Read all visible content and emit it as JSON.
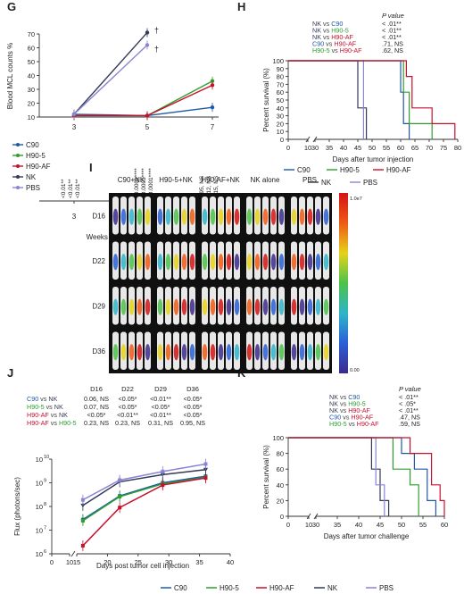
{
  "panels": {
    "G": "G",
    "H": "H",
    "I": "I",
    "J": "J",
    "K": "K"
  },
  "colors": {
    "C90": "#1f5aa6",
    "H90-5": "#2ca02c",
    "H90-AF": "#c8102e",
    "NK": "#333a55",
    "PBS": "#8a84d6"
  },
  "chart_data": [
    {
      "id": "G",
      "type": "line",
      "xlabel": "Weeks after tumor injection",
      "ylabel": "Blood MCL counts %",
      "categories": [
        "3",
        "5",
        "7"
      ],
      "ylim": [
        10,
        70
      ],
      "yticks": [
        10,
        20,
        30,
        40,
        50,
        60,
        70
      ],
      "series": [
        {
          "name": "C90",
          "values": [
            12,
            11,
            17
          ]
        },
        {
          "name": "H90-5",
          "values": [
            11,
            11,
            36
          ]
        },
        {
          "name": "H90-AF",
          "values": [
            11,
            11,
            33
          ]
        },
        {
          "name": "NK",
          "values": [
            12,
            71,
            null
          ]
        },
        {
          "name": "PBS",
          "values": [
            12,
            62,
            null
          ]
        }
      ],
      "death_marks": [
        "†",
        "†"
      ],
      "pvalues": [
        [
          "<0.01**",
          "<0.01**",
          "<0.01**"
        ],
        [
          "<0.0001****",
          "<0.0001****",
          "<0.0001****"
        ],
        [
          "0.95, NS",
          "0.12, NS",
          "0.15, NS"
        ]
      ]
    },
    {
      "id": "H",
      "type": "line",
      "xlabel": "Days after tumor injection",
      "ylabel": "Percent survival (%)",
      "xticks": [
        "0",
        "10",
        "30",
        "35",
        "40",
        "45",
        "50",
        "55",
        "60",
        "65",
        "70",
        "75",
        "80"
      ],
      "yticks": [
        "0",
        "10",
        "20",
        "30",
        "40",
        "50",
        "60",
        "70",
        "80",
        "90",
        "100"
      ],
      "ylim": [
        0,
        100
      ],
      "ptable_header": "P value",
      "ptable": [
        {
          "a": "NK",
          "b": "C90",
          "p": "< .01**"
        },
        {
          "a": "NK",
          "b": "H90-5",
          "p": "< .01**"
        },
        {
          "a": "NK",
          "b": "H90-AF",
          "p": "< .01**"
        },
        {
          "a": "C90",
          "b": "H90-AF",
          "p": ".71, NS"
        },
        {
          "a": "H90-5",
          "b": "H90-AF",
          "p": ".62, NS"
        }
      ],
      "vs": "vs",
      "series": [
        {
          "name": "NK",
          "steps": [
            [
              0,
              100
            ],
            [
              45,
              100
            ],
            [
              45,
              40
            ],
            [
              48,
              40
            ],
            [
              48,
              0
            ]
          ]
        },
        {
          "name": "PBS",
          "steps": [
            [
              0,
              100
            ],
            [
              47,
              100
            ],
            [
              47,
              0
            ]
          ]
        },
        {
          "name": "C90",
          "steps": [
            [
              0,
              100
            ],
            [
              60,
              100
            ],
            [
              60,
              60
            ],
            [
              61,
              60
            ],
            [
              61,
              20
            ],
            [
              63,
              20
            ],
            [
              63,
              0
            ]
          ]
        },
        {
          "name": "H90-5",
          "steps": [
            [
              0,
              100
            ],
            [
              61,
              100
            ],
            [
              61,
              60
            ],
            [
              63,
              60
            ],
            [
              63,
              20
            ],
            [
              71,
              20
            ],
            [
              71,
              0
            ]
          ]
        },
        {
          "name": "H90-AF",
          "steps": [
            [
              0,
              100
            ],
            [
              62,
              100
            ],
            [
              62,
              80
            ],
            [
              64,
              80
            ],
            [
              64,
              40
            ],
            [
              71,
              40
            ],
            [
              71,
              20
            ],
            [
              79,
              20
            ],
            [
              79,
              0
            ]
          ]
        }
      ],
      "legend": [
        "C90",
        "H90-5",
        "H90-AF",
        "NK",
        "PBS"
      ]
    },
    {
      "id": "J",
      "type": "line",
      "xlabel": "Days post tumor cell injection",
      "ylabel": "Flux (photons/sec)",
      "xticks": [
        "0",
        "10",
        "15",
        "20",
        "25",
        "30",
        "35",
        "40"
      ],
      "yticks": [
        "10",
        "10",
        "10",
        "10",
        "10"
      ],
      "ytick_exp": [
        "6",
        "7",
        "8",
        "9",
        "10"
      ],
      "x": [
        16,
        22,
        29,
        36
      ],
      "series": [
        {
          "name": "C90",
          "values": [
            28000000.0,
            280000000.0,
            1000000000.0,
            1900000000.0
          ]
        },
        {
          "name": "H90-5",
          "values": [
            25000000.0,
            260000000.0,
            900000000.0,
            1700000000.0
          ]
        },
        {
          "name": "H90-AF",
          "values": [
            2200000.0,
            90000000.0,
            800000000.0,
            1600000000.0
          ]
        },
        {
          "name": "NK",
          "values": [
            110000000.0,
            1100000000.0,
            2200000000.0,
            3600000000.0
          ]
        },
        {
          "name": "PBS",
          "values": [
            190000000.0,
            1300000000.0,
            3000000000.0,
            6200000000.0
          ]
        }
      ],
      "table_header": [
        "D16",
        "D22",
        "D29",
        "D36"
      ],
      "table": [
        {
          "a": "C90",
          "b": "NK",
          "cells": [
            "0.06, NS",
            "<0.05*",
            "<0.01**",
            "<0.05*"
          ]
        },
        {
          "a": "H90-5",
          "b": "NK",
          "cells": [
            "0.07, NS",
            "<0.05*",
            "<0.05*",
            "<0.05*"
          ]
        },
        {
          "a": "H90-AF",
          "b": "NK",
          "cells": [
            "<0.05*",
            "<0.01**",
            "<0.01**",
            "<0.05*"
          ]
        },
        {
          "a": "H90-AF",
          "b": "H90-5",
          "cells": [
            "0.23, NS",
            "0.23, NS",
            "0.31, NS",
            "0.95, NS"
          ]
        }
      ],
      "legend": [
        "C90",
        "H90-5",
        "H90-AF",
        "NK",
        "PBS"
      ]
    },
    {
      "id": "K",
      "type": "line",
      "xlabel": "Days after tumor challenge",
      "ylabel": "Percent survival (%)",
      "xticks": [
        "0",
        "10",
        "30",
        "35",
        "40",
        "45",
        "50",
        "55",
        "60"
      ],
      "yticks": [
        "0",
        "20",
        "40",
        "60",
        "80",
        "100"
      ],
      "ylim": [
        0,
        100
      ],
      "ptable_header": "P value",
      "ptable": [
        {
          "a": "NK",
          "b": "C90",
          "p": "< .01**"
        },
        {
          "a": "NK",
          "b": "H90-5",
          "p": "< .05*"
        },
        {
          "a": "NK",
          "b": "H90-AF",
          "p": "< .01**"
        },
        {
          "a": "C90",
          "b": "H90-AF",
          "p": ".47, NS"
        },
        {
          "a": "H90-5",
          "b": "H90-AF",
          "p": ".59, NS"
        }
      ],
      "series": [
        {
          "name": "NK",
          "steps": [
            [
              0,
              100
            ],
            [
              43,
              100
            ],
            [
              43,
              60
            ],
            [
              45,
              60
            ],
            [
              45,
              20
            ],
            [
              47,
              20
            ],
            [
              47,
              0
            ]
          ]
        },
        {
          "name": "PBS",
          "steps": [
            [
              0,
              100
            ],
            [
              44,
              100
            ],
            [
              44,
              40
            ],
            [
              46,
              40
            ],
            [
              46,
              0
            ]
          ]
        },
        {
          "name": "C90",
          "steps": [
            [
              0,
              100
            ],
            [
              50,
              100
            ],
            [
              50,
              80
            ],
            [
              53,
              80
            ],
            [
              53,
              60
            ],
            [
              56,
              60
            ],
            [
              56,
              20
            ],
            [
              58,
              20
            ],
            [
              58,
              0
            ]
          ]
        },
        {
          "name": "H90-5",
          "steps": [
            [
              0,
              100
            ],
            [
              48,
              100
            ],
            [
              48,
              60
            ],
            [
              52,
              60
            ],
            [
              52,
              40
            ],
            [
              54,
              40
            ],
            [
              54,
              0
            ]
          ]
        },
        {
          "name": "H90-AF",
          "steps": [
            [
              0,
              100
            ],
            [
              52,
              100
            ],
            [
              52,
              80
            ],
            [
              57,
              80
            ],
            [
              57,
              40
            ],
            [
              59,
              40
            ],
            [
              59,
              20
            ],
            [
              60,
              20
            ],
            [
              60,
              0
            ]
          ]
        }
      ]
    }
  ],
  "imaging": {
    "columns": [
      "C90+NK",
      "H90-5+NK",
      "H90-AF+NK",
      "NK alone",
      "PBS"
    ],
    "rows": [
      "D16",
      "D22",
      "D29",
      "D36"
    ],
    "scale_top": "1.0e7",
    "scale_bottom": "0.00"
  }
}
